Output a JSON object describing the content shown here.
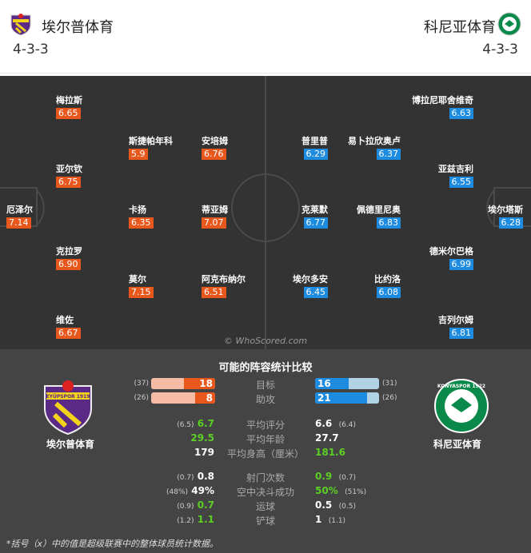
{
  "home": {
    "name": "埃尔普体育",
    "formation": "4-3-3",
    "color": "#e8571c"
  },
  "away": {
    "name": "科尼亚体育",
    "formation": "4-3-3",
    "color": "#1d8be0"
  },
  "home_players": [
    {
      "name": "梅拉斯",
      "rating": "6.65"
    },
    {
      "name": "斯捷帕年科",
      "rating": "5.9"
    },
    {
      "name": "安培姆",
      "rating": "6.76"
    },
    {
      "name": "亚尔钦",
      "rating": "6.75"
    },
    {
      "name": "厄泽尔",
      "rating": "7.14"
    },
    {
      "name": "卡扬",
      "rating": "6.35"
    },
    {
      "name": "蒂亚姆",
      "rating": "7.07"
    },
    {
      "name": "克拉罗",
      "rating": "6.90"
    },
    {
      "name": "莫尔",
      "rating": "7.15"
    },
    {
      "name": "阿克布纳尔",
      "rating": "6.51"
    },
    {
      "name": "维佐",
      "rating": "6.67"
    }
  ],
  "away_players": [
    {
      "name": "博拉尼耶舍维奇",
      "rating": "6.63"
    },
    {
      "name": "普里普",
      "rating": "6.29"
    },
    {
      "name": "易卜拉欣奥卢",
      "rating": "6.37"
    },
    {
      "name": "亚兹吉利",
      "rating": "6.55"
    },
    {
      "name": "埃尔塔斯",
      "rating": "6.28"
    },
    {
      "name": "克莱默",
      "rating": "6.77"
    },
    {
      "name": "佩德里尼奥",
      "rating": "6.83"
    },
    {
      "name": "德米尔巴格",
      "rating": "6.99"
    },
    {
      "name": "埃尔多安",
      "rating": "6.45"
    },
    {
      "name": "比约洛",
      "rating": "6.08"
    },
    {
      "name": "吉列尔姆",
      "rating": "6.81"
    }
  ],
  "watermark": "© WhoScored.com",
  "stats": {
    "title": "可能的阵容统计比较",
    "home_logo_text": "EYÜPSPOR 1919",
    "away_logo_text": "KONYASPOR 1922",
    "bars": [
      {
        "label": "目标",
        "home": "18",
        "home_avg": "(37)",
        "away": "16",
        "away_avg": "(31)",
        "home_frac": 0.49,
        "away_frac": 0.52
      },
      {
        "label": "助攻",
        "home": "8",
        "home_avg": "(26)",
        "away": "21",
        "away_avg": "(26)",
        "home_frac": 0.31,
        "away_frac": 0.81
      }
    ],
    "rows": [
      {
        "label": "平均评分",
        "home": "6.7",
        "home_avg": "(6.5)",
        "away": "6.6",
        "away_avg": "(6.4)",
        "better": "home"
      },
      {
        "label": "平均年龄",
        "home": "29.5",
        "home_avg": "",
        "away": "27.7",
        "away_avg": "",
        "better": "home"
      },
      {
        "label": "平均身高（厘米）",
        "home": "179",
        "home_avg": "",
        "away": "181.6",
        "away_avg": "",
        "better": "away"
      },
      {
        "label": "射门次数",
        "home": "0.8",
        "home_avg": "(0.7)",
        "away": "0.9",
        "away_avg": "(0.7)",
        "better": "away"
      },
      {
        "label": "空中决斗成功",
        "home": "49%",
        "home_avg": "(48%)",
        "away": "50%",
        "away_avg": "(51%)",
        "better": "away"
      },
      {
        "label": "运球",
        "home": "0.7",
        "home_avg": "(0.9)",
        "away": "0.5",
        "away_avg": "(0.5)",
        "better": "home"
      },
      {
        "label": "铲球",
        "home": "1.1",
        "home_avg": "(1.2)",
        "away": "1",
        "away_avg": "(1.1)",
        "better": "home"
      }
    ]
  },
  "footnote": "*括号（x）中的值是超级联赛中的整体球员统计数据。"
}
